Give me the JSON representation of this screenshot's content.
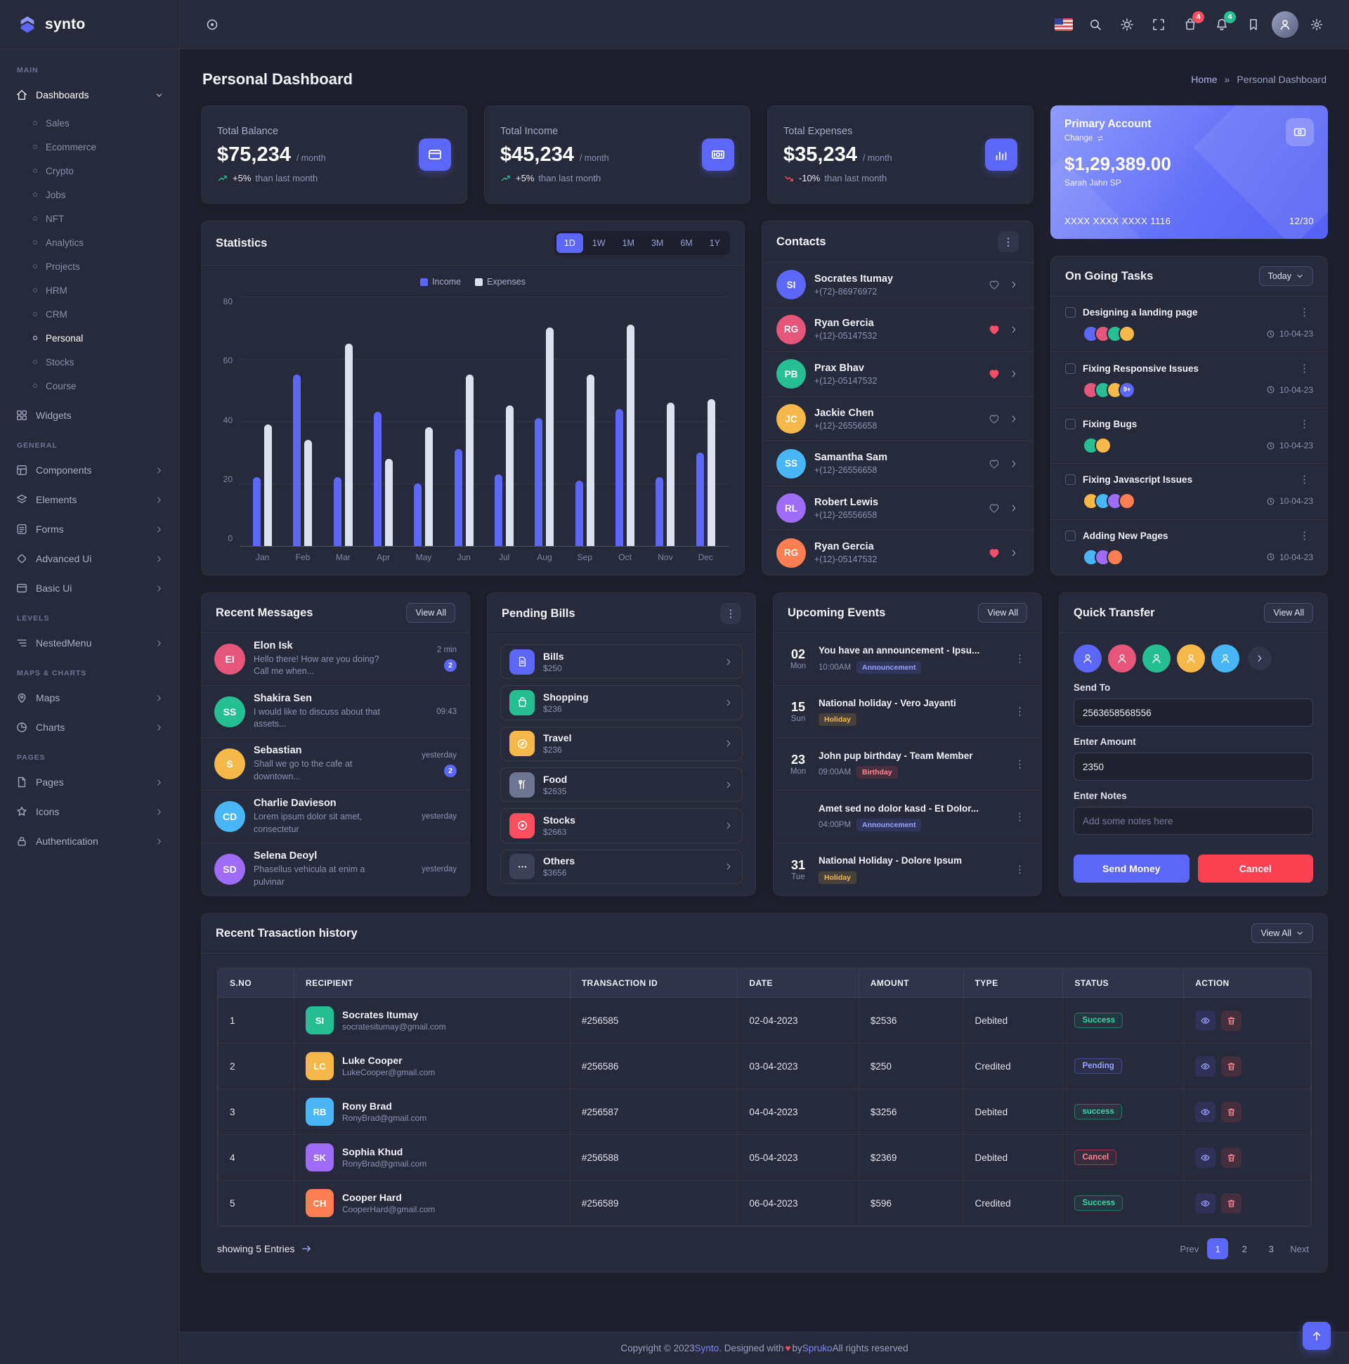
{
  "brand": {
    "name": "synto"
  },
  "header": {
    "cart_badge": "4",
    "notification_badge": "4"
  },
  "page": {
    "title": "Personal Dashboard",
    "breadcrumb_home": "Home",
    "breadcrumb_separator": "»",
    "breadcrumb_current": "Personal Dashboard"
  },
  "sidebar": {
    "sections": [
      {
        "label": "MAIN",
        "items": [
          {
            "label": "Dashboards",
            "icon": "home",
            "chevron": true,
            "expanded": true,
            "children": [
              {
                "label": "Sales"
              },
              {
                "label": "Ecommerce"
              },
              {
                "label": "Crypto"
              },
              {
                "label": "Jobs"
              },
              {
                "label": "NFT"
              },
              {
                "label": "Analytics"
              },
              {
                "label": "Projects"
              },
              {
                "label": "HRM"
              },
              {
                "label": "CRM"
              },
              {
                "label": "Personal",
                "active": true
              },
              {
                "label": "Stocks"
              },
              {
                "label": "Course"
              }
            ]
          },
          {
            "label": "Widgets",
            "icon": "widgets"
          }
        ]
      },
      {
        "label": "GENERAL",
        "items": [
          {
            "label": "Components",
            "icon": "components",
            "chevron": true
          },
          {
            "label": "Elements",
            "icon": "elements",
            "chevron": true
          },
          {
            "label": "Forms",
            "icon": "forms",
            "chevron": true
          },
          {
            "label": "Advanced Ui",
            "icon": "advanced",
            "chevron": true
          },
          {
            "label": "Basic Ui",
            "icon": "basic",
            "chevron": true
          }
        ]
      },
      {
        "label": "LEVELS",
        "items": [
          {
            "label": "NestedMenu",
            "icon": "nested",
            "chevron": true
          }
        ]
      },
      {
        "label": "MAPS & CHARTS",
        "items": [
          {
            "label": "Maps",
            "icon": "maps",
            "chevron": true
          },
          {
            "label": "Charts",
            "icon": "charts",
            "chevron": true
          }
        ]
      },
      {
        "label": "PAGES",
        "items": [
          {
            "label": "Pages",
            "icon": "pages",
            "chevron": true
          },
          {
            "label": "Icons",
            "icon": "icons",
            "chevron": true
          },
          {
            "label": "Authentication",
            "icon": "auth",
            "chevron": true
          }
        ]
      }
    ]
  },
  "stats": [
    {
      "title": "Total Balance",
      "value": "$75,234",
      "suffix": "/ month",
      "pct": "+5%",
      "trend_text": "than last month",
      "trend_dir": "up",
      "icon": "card"
    },
    {
      "title": "Total Income",
      "value": "$45,234",
      "suffix": "/ month",
      "pct": "+5%",
      "trend_text": "than last month",
      "trend_dir": "up",
      "icon": "money"
    },
    {
      "title": "Total Expenses",
      "value": "$35,234",
      "suffix": "/ month",
      "pct": "-10%",
      "trend_text": "than last month",
      "trend_dir": "down",
      "icon": "bars"
    }
  ],
  "account": {
    "title": "Primary Account",
    "change_label": "Change",
    "value": "$1,29,389.00",
    "holder": "Sarah Jahn SP",
    "number": "XXXX XXXX XXXX 1116",
    "expiry": "12/30"
  },
  "statistics": {
    "title": "Statistics",
    "ranges": [
      "1D",
      "1W",
      "1M",
      "3M",
      "6M",
      "1Y"
    ],
    "active_range": "1D"
  },
  "chart_data": {
    "type": "bar",
    "title": "Statistics",
    "categories": [
      "Jan",
      "Feb",
      "Mar",
      "Apr",
      "May",
      "Jun",
      "Jul",
      "Aug",
      "Sep",
      "Oct",
      "Nov",
      "Dec"
    ],
    "series": [
      {
        "name": "Income",
        "color": "#5c67f7",
        "values": [
          22,
          55,
          22,
          43,
          20,
          31,
          23,
          41,
          21,
          44,
          22,
          30
        ]
      },
      {
        "name": "Expenses",
        "color": "#dde1ef",
        "values": [
          39,
          34,
          65,
          28,
          38,
          55,
          45,
          70,
          55,
          71,
          46,
          47
        ]
      }
    ],
    "ylim": [
      0,
      80
    ],
    "yticks": [
      0,
      20,
      40,
      60,
      80
    ],
    "legend_position": "top",
    "grid": true
  },
  "contacts": {
    "title": "Contacts",
    "items": [
      {
        "name": "Socrates Itumay",
        "phone": "+(72)-86976972",
        "liked": false
      },
      {
        "name": "Ryan Gercia",
        "phone": "+(12)-05147532",
        "liked": true
      },
      {
        "name": "Prax Bhav",
        "phone": "+(12)-05147532",
        "liked": true
      },
      {
        "name": "Jackie Chen",
        "phone": "+(12)-26556658",
        "liked": false
      },
      {
        "name": "Samantha Sam",
        "phone": "+(12)-26556658",
        "liked": false
      },
      {
        "name": "Robert Lewis",
        "phone": "+(12)-26556658",
        "liked": false
      },
      {
        "name": "Ryan Gercia",
        "phone": "+(12)-05147532",
        "liked": true
      }
    ]
  },
  "tasks": {
    "title": "On Going Tasks",
    "filter_label": "Today",
    "items": [
      {
        "title": "Designing a landing page",
        "date": "10-04-23",
        "avatars": 4
      },
      {
        "title": "Fixing Responsive Issues",
        "date": "10-04-23",
        "avatars": 3,
        "extra": "9+"
      },
      {
        "title": "Fixing Bugs",
        "date": "10-04-23",
        "avatars": 2
      },
      {
        "title": "Fixing Javascript Issues",
        "date": "10-04-23",
        "avatars": 4
      },
      {
        "title": "Adding New Pages",
        "date": "10-04-23",
        "avatars": 3
      }
    ]
  },
  "messages": {
    "title": "Recent Messages",
    "view_all": "View All",
    "items": [
      {
        "name": "Elon Isk",
        "preview": "Hello there! How are you doing? Call me when...",
        "time": "2 min",
        "badge": "2"
      },
      {
        "name": "Shakira Sen",
        "preview": "I would like to discuss about that assets...",
        "time": "09:43"
      },
      {
        "name": "Sebastian",
        "preview": "Shall we go to the cafe at downtown...",
        "time": "yesterday",
        "badge": "2"
      },
      {
        "name": "Charlie Davieson",
        "preview": "Lorem ipsum dolor sit amet, consectetur",
        "time": "yesterday"
      },
      {
        "name": "Selena Deoyl",
        "preview": "Phasellus vehicula at enim a pulvinar",
        "time": "yesterday"
      }
    ]
  },
  "bills": {
    "title": "Pending Bills",
    "items": [
      {
        "label": "Bills",
        "amount": "$250",
        "icon": "file",
        "color": "#5c67f7"
      },
      {
        "label": "Shopping",
        "amount": "$236",
        "icon": "bag",
        "color": "#26bf94"
      },
      {
        "label": "Travel",
        "amount": "$236",
        "icon": "compass",
        "color": "#f5b849"
      },
      {
        "label": "Food",
        "amount": "$2635",
        "icon": "food",
        "color": "#6e7591"
      },
      {
        "label": "Stocks",
        "amount": "$2663",
        "icon": "disc",
        "color": "#fb4e5e"
      },
      {
        "label": "Others",
        "amount": "$3656",
        "icon": "dots",
        "color": "#3d4259"
      }
    ]
  },
  "events": {
    "title": "Upcoming Events",
    "view_all": "View All",
    "items": [
      {
        "day": "02",
        "weekday": "Mon",
        "title": "You have an announcement - Ipsu...",
        "time": "10:00AM",
        "badge": "Announcement",
        "badge_type": "announcement"
      },
      {
        "day": "15",
        "weekday": "Sun",
        "title": "National holiday - Vero Jayanti",
        "badge": "Holiday",
        "badge_type": "holiday"
      },
      {
        "day": "23",
        "weekday": "Mon",
        "title": "John pup birthday - Team Member",
        "time": "09:00AM",
        "badge": "Birthday",
        "badge_type": "birthday"
      },
      {
        "title": "Amet sed no dolor kasd - Et Dolor...",
        "time": "04:00PM",
        "badge": "Announcement",
        "badge_type": "announcement"
      },
      {
        "day": "31",
        "weekday": "Tue",
        "title": "National Holiday - Dolore Ipsum",
        "badge": "Holiday",
        "badge_type": "holiday"
      }
    ]
  },
  "transfer": {
    "title": "Quick Transfer",
    "view_all": "View All",
    "avatars": 5,
    "send_to_label": "Send To",
    "send_to_value": "2563658568556",
    "amount_label": "Enter Amount",
    "amount_value": "2350",
    "notes_label": "Enter Notes",
    "notes_placeholder": "Add some notes here",
    "send_label": "Send Money",
    "cancel_label": "Cancel"
  },
  "transactions": {
    "title": "Recent Trasaction history",
    "view_all": "View All",
    "columns": [
      "S.NO",
      "RECIPIENT",
      "TRANSACTION ID",
      "DATE",
      "AMOUNT",
      "TYPE",
      "STATUS",
      "ACTION"
    ],
    "rows": [
      {
        "sno": "1",
        "name": "Socrates Itumay",
        "email": "socratesitumay@gmail.com",
        "txid": "#256585",
        "date": "02-04-2023",
        "amount": "$2536",
        "type": "Debited",
        "status": "Success",
        "status_type": "success"
      },
      {
        "sno": "2",
        "name": "Luke Cooper",
        "email": "LukeCooper@gmail.com",
        "txid": "#256586",
        "date": "03-04-2023",
        "amount": "$250",
        "type": "Credited",
        "status": "Pending",
        "status_type": "pending"
      },
      {
        "sno": "3",
        "name": "Rony Brad",
        "email": "RonyBrad@gmail.com",
        "txid": "#256587",
        "date": "04-04-2023",
        "amount": "$3256",
        "type": "Debited",
        "status": "success",
        "status_type": "success"
      },
      {
        "sno": "4",
        "name": "Sophia Khud",
        "email": "RonyBrad@gmail.com",
        "txid": "#256588",
        "date": "05-04-2023",
        "amount": "$2369",
        "type": "Debited",
        "status": "Cancel",
        "status_type": "cancel"
      },
      {
        "sno": "5",
        "name": "Cooper Hard",
        "email": "CooperHard@gmail.com",
        "txid": "#256589",
        "date": "06-04-2023",
        "amount": "$596",
        "type": "Credited",
        "status": "Success",
        "status_type": "success"
      }
    ],
    "showing": "showing 5 Entries",
    "pagination": {
      "prev": "Prev",
      "pages": [
        "1",
        "2",
        "3"
      ],
      "active": "1",
      "next": "Next"
    }
  },
  "footer": {
    "part1": "Copyright © 2023 ",
    "brand": "Synto",
    "part2": ". Designed with ",
    "heart": "♥",
    "part3": " by ",
    "author": "Spruko",
    "part4": " All rights reserved"
  },
  "colors": {
    "primary": "#5c67f7",
    "success": "#26bf94",
    "danger": "#fb4e5e",
    "warning": "#f5b849",
    "income_bar": "#5c67f7",
    "expense_bar": "#dde1ef"
  },
  "avatar_palette": [
    "#5c67f7",
    "#e6567a",
    "#26bf94",
    "#f5b849",
    "#49b6f5",
    "#9e6cf7",
    "#fd7e50"
  ]
}
